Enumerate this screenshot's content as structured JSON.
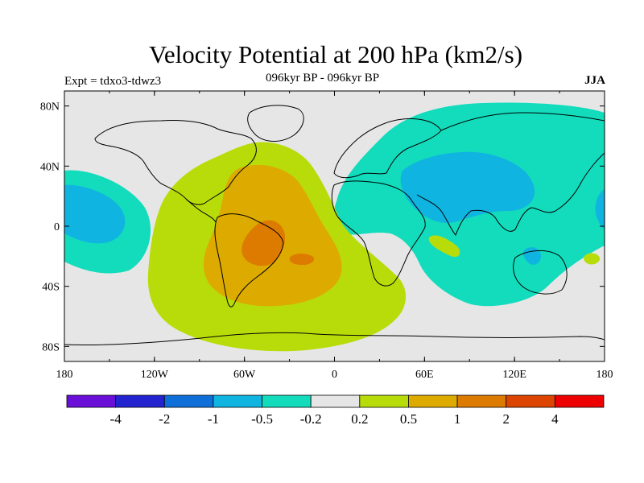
{
  "header": {
    "title": "Velocity Potential at 200 hPa (km2/s)",
    "subtitle": "096kyr BP - 096kyr BP",
    "left_label": "Expt = tdxo3-tdwz3",
    "right_label": "JJA"
  },
  "map": {
    "projection": "cylindrical equidistant",
    "background_color": "#e6e6e6",
    "lon_ticks": [
      "180",
      "120W",
      "60W",
      "0",
      "60E",
      "120E",
      "180"
    ],
    "lat_ticks": [
      "80N",
      "40N",
      "0",
      "40S",
      "80S"
    ]
  },
  "colorbar": {
    "colors": [
      "#6a0fd8",
      "#2323d0",
      "#0f6fd8",
      "#10b4e0",
      "#12dcbc",
      "#e6e6e6",
      "#b8dc0a",
      "#ddaa00",
      "#dd7a00",
      "#dd4400",
      "#ee0000"
    ],
    "labels": [
      "-4",
      "-2",
      "-1",
      "-0.5",
      "-0.2",
      "0.2",
      "0.5",
      "1",
      "2",
      "4"
    ]
  },
  "fields": {
    "positive_region_colors": [
      "#b8dc0a",
      "#ddaa00",
      "#dd7a00"
    ],
    "negative_region_colors": [
      "#12dcbc",
      "#10b4e0"
    ]
  }
}
